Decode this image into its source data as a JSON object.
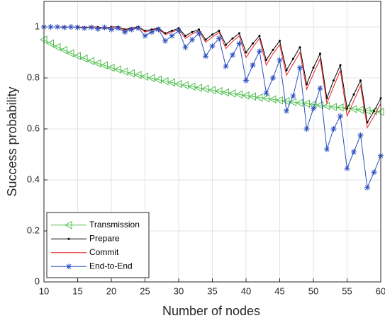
{
  "chart_data": {
    "type": "line",
    "xlabel": "Number of nodes",
    "ylabel": "Success probability",
    "x": [
      10,
      11,
      12,
      13,
      14,
      15,
      16,
      17,
      18,
      19,
      20,
      21,
      22,
      23,
      24,
      25,
      26,
      27,
      28,
      29,
      30,
      31,
      32,
      33,
      34,
      35,
      36,
      37,
      38,
      39,
      40,
      41,
      42,
      43,
      44,
      45,
      46,
      47,
      48,
      49,
      50,
      51,
      52,
      53,
      54,
      55,
      56,
      57,
      58,
      59,
      60
    ],
    "series": [
      {
        "name": "Transmission",
        "color": "#4fc04f",
        "marker": "triangle-left",
        "values": [
          0.95,
          0.935,
          0.921,
          0.909,
          0.897,
          0.886,
          0.876,
          0.866,
          0.857,
          0.849,
          0.84,
          0.833,
          0.825,
          0.818,
          0.812,
          0.805,
          0.799,
          0.793,
          0.787,
          0.782,
          0.776,
          0.771,
          0.766,
          0.761,
          0.757,
          0.752,
          0.748,
          0.743,
          0.739,
          0.735,
          0.731,
          0.727,
          0.723,
          0.72,
          0.716,
          0.712,
          0.709,
          0.705,
          0.702,
          0.699,
          0.696,
          0.693,
          0.69,
          0.686,
          0.684,
          0.681,
          0.678,
          0.675,
          0.672,
          0.67,
          0.667
        ]
      },
      {
        "name": "Prepare",
        "color": "#000000",
        "marker": "dot",
        "values": [
          1,
          1,
          1,
          1,
          1,
          1,
          0.998,
          1,
          1,
          0.995,
          1,
          1,
          0.99,
          0.995,
          1,
          0.985,
          0.99,
          0.995,
          0.975,
          0.985,
          0.995,
          0.965,
          0.98,
          0.99,
          0.95,
          0.97,
          0.985,
          0.93,
          0.955,
          0.975,
          0.9,
          0.935,
          0.965,
          0.87,
          0.91,
          0.945,
          0.83,
          0.875,
          0.92,
          0.775,
          0.84,
          0.895,
          0.72,
          0.79,
          0.85,
          0.68,
          0.735,
          0.79,
          0.625,
          0.67,
          0.72
        ]
      },
      {
        "name": "Commit",
        "color": "#e8202a",
        "marker": "none",
        "values": [
          1,
          1,
          1,
          1,
          1,
          1,
          0.997,
          1,
          0.999,
          0.993,
          0.999,
          0.999,
          0.987,
          0.993,
          0.999,
          0.98,
          0.987,
          0.993,
          0.97,
          0.98,
          0.99,
          0.955,
          0.972,
          0.985,
          0.94,
          0.96,
          0.978,
          0.915,
          0.943,
          0.965,
          0.88,
          0.92,
          0.955,
          0.85,
          0.895,
          0.93,
          0.81,
          0.855,
          0.9,
          0.755,
          0.815,
          0.875,
          0.7,
          0.765,
          0.83,
          0.65,
          0.71,
          0.77,
          0.605,
          0.65,
          0.7
        ]
      },
      {
        "name": "End-to-End",
        "color": "#2b4fbf",
        "marker": "asterisk",
        "values": [
          1,
          1,
          1,
          0.998,
          1,
          0.998,
          0.995,
          0.998,
          0.992,
          0.998,
          0.99,
          0.995,
          0.98,
          0.99,
          0.995,
          0.965,
          0.98,
          0.99,
          0.945,
          0.965,
          0.985,
          0.92,
          0.95,
          0.975,
          0.885,
          0.925,
          0.955,
          0.845,
          0.89,
          0.935,
          0.79,
          0.85,
          0.905,
          0.74,
          0.8,
          0.87,
          0.67,
          0.73,
          0.84,
          0.6,
          0.68,
          0.76,
          0.52,
          0.6,
          0.65,
          0.445,
          0.51,
          0.575,
          0.37,
          0.43,
          0.495
        ]
      }
    ],
    "xlim": [
      10,
      60
    ],
    "xticks": [
      10,
      15,
      20,
      25,
      30,
      35,
      40,
      45,
      50,
      55,
      60
    ],
    "ylim": [
      0,
      1.1
    ],
    "yticks": [
      0,
      0.2,
      0.4,
      0.6,
      0.8,
      1
    ],
    "grid": true,
    "legend": "lower-left"
  }
}
